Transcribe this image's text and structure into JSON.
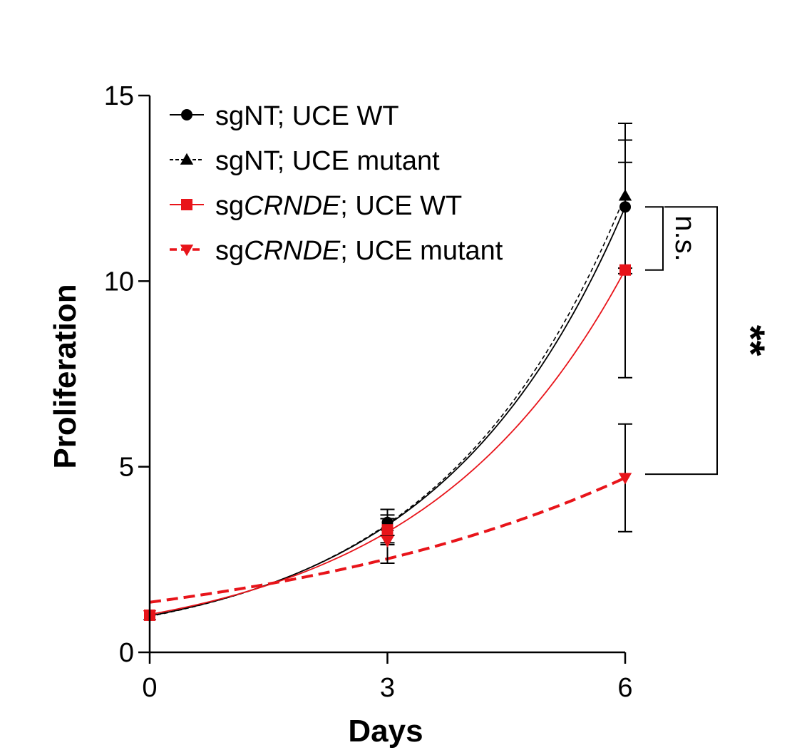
{
  "chart_data": {
    "type": "line",
    "xlabel": "Days",
    "ylabel": "Proliferation",
    "xlim": [
      0,
      6
    ],
    "ylim": [
      0,
      15
    ],
    "x_ticks": [
      0,
      3,
      6
    ],
    "y_ticks": [
      0,
      5,
      10,
      15
    ],
    "grid": false,
    "legend_position": "top-left",
    "x": [
      0,
      3,
      6
    ],
    "series": [
      {
        "name_parts": [
          {
            "text": "sgNT; UCE WT",
            "italic": false
          }
        ],
        "color": "#000000",
        "line": "solid",
        "marker": "circle",
        "values": [
          1.0,
          3.5,
          12.0
        ],
        "errors": [
          0,
          0.35,
          1.8
        ],
        "fit": {
          "a": 0.98,
          "b": 0.4175
        }
      },
      {
        "name_parts": [
          {
            "text": "sgNT; UCE mutant",
            "italic": false
          }
        ],
        "color": "#000000",
        "line": "dashed",
        "marker": "triangle-up",
        "values": [
          1.0,
          3.4,
          12.3
        ],
        "errors": [
          0,
          0.45,
          1.95
        ],
        "fit": {
          "a": 0.97,
          "b": 0.4235
        }
      },
      {
        "name_parts": [
          {
            "text": "sg",
            "italic": false
          },
          {
            "text": "CRNDE",
            "italic": true
          },
          {
            "text": "; UCE WT",
            "italic": false
          }
        ],
        "color": "#e8141a",
        "line": "solid",
        "marker": "square",
        "values": [
          1.0,
          3.3,
          10.3
        ],
        "errors": [
          0,
          0.4,
          2.9
        ],
        "fit": {
          "a": 1.02,
          "b": 0.3855
        }
      },
      {
        "name_parts": [
          {
            "text": "sg",
            "italic": false
          },
          {
            "text": "CRNDE",
            "italic": true
          },
          {
            "text": "; UCE mutant",
            "italic": false
          }
        ],
        "color": "#e8141a",
        "line": "dashed-bold",
        "marker": "triangle-down",
        "values": [
          1.0,
          3.0,
          4.7
        ],
        "errors": [
          0,
          0.6,
          1.45
        ],
        "fit": {
          "a": 1.35,
          "b": 0.208
        }
      }
    ],
    "annotations": [
      {
        "label": "n.s.",
        "y_top": 12.0,
        "y_bottom": 10.3
      },
      {
        "label": "**",
        "y_top": 12.0,
        "y_bottom": 4.8
      }
    ]
  }
}
